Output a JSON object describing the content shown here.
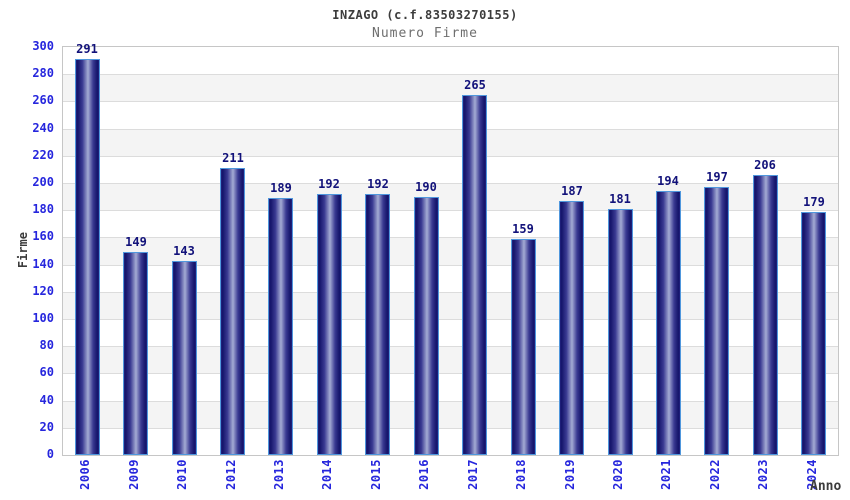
{
  "chart_data": {
    "type": "bar",
    "title": "INZAGO (c.f.83503270155)",
    "subtitle": "Numero Firme",
    "xlabel": "Anno",
    "ylabel": "Firme",
    "categories": [
      "2006",
      "2009",
      "2010",
      "2012",
      "2013",
      "2014",
      "2015",
      "2016",
      "2017",
      "2018",
      "2019",
      "2020",
      "2021",
      "2022",
      "2023",
      "2024"
    ],
    "values": [
      291,
      149,
      143,
      211,
      189,
      192,
      192,
      190,
      265,
      159,
      187,
      181,
      194,
      197,
      206,
      179
    ],
    "ylim": [
      0,
      300
    ],
    "ytick_step": 20,
    "yticks": [
      0,
      20,
      40,
      60,
      80,
      100,
      120,
      140,
      160,
      180,
      200,
      220,
      240,
      260,
      280,
      300
    ],
    "grid": "horizontal-bands-alternating",
    "legend": "none",
    "bar_labels_shown": true,
    "colors": {
      "bar_edge": "#14146a",
      "bar_highlight": "#a4abd4",
      "bar_border": "#4f97dd",
      "tick_text": "#2626dd",
      "value_label_text": "#12127a",
      "title_text": "#3c3c3c",
      "subtitle_text": "#6e6e6e",
      "axis_label_text": "#3c3c3c",
      "band_alt": "#f4f4f4",
      "gridline": "#dcdcdc",
      "plot_border": "#c6c6c6",
      "background": "#ffffff"
    }
  }
}
